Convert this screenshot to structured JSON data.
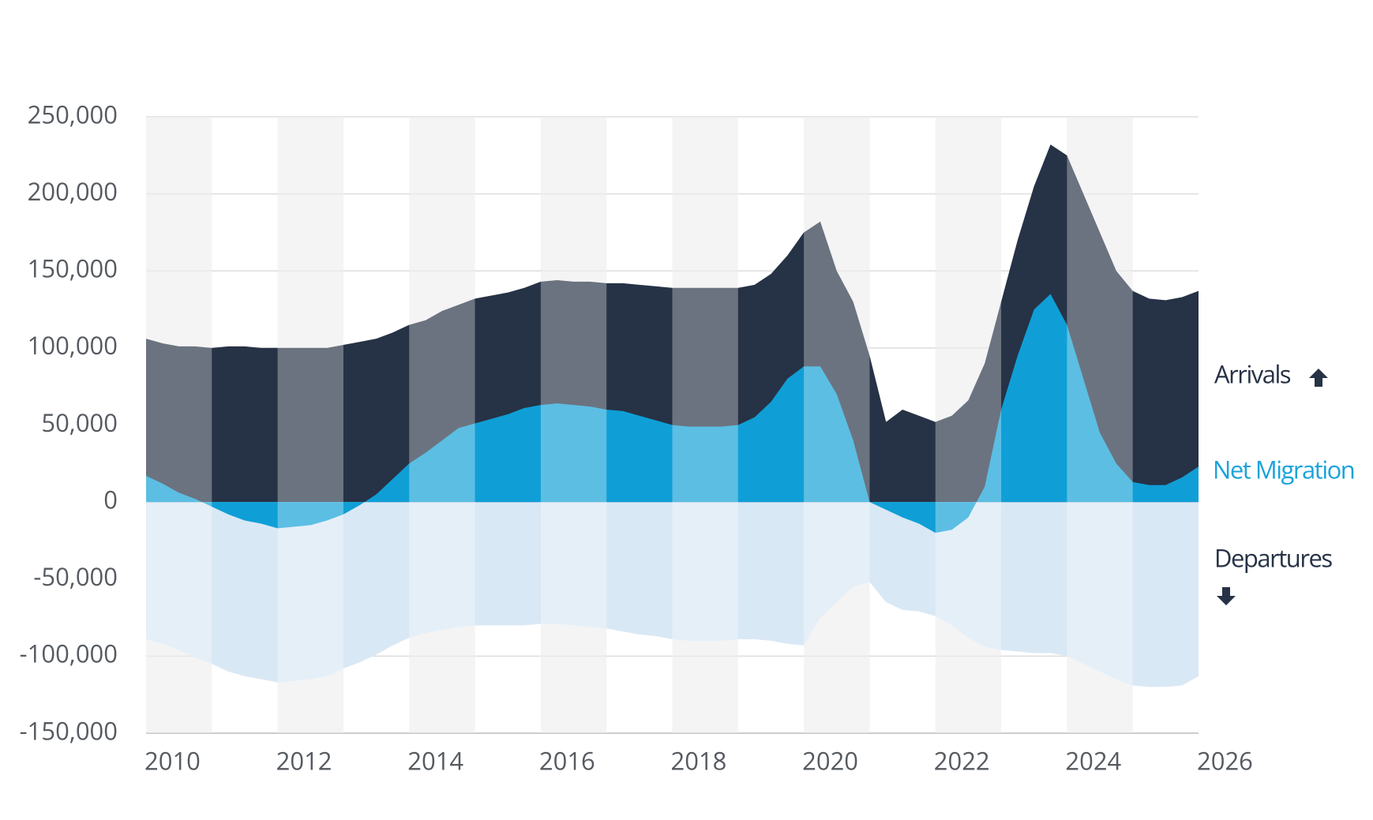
{
  "chart_data": {
    "type": "area",
    "x": [
      2010,
      2010.25,
      2010.5,
      2010.75,
      2011,
      2011.25,
      2011.5,
      2011.75,
      2012,
      2012.25,
      2012.5,
      2012.75,
      2013,
      2013.25,
      2013.5,
      2013.75,
      2014,
      2014.25,
      2014.5,
      2014.75,
      2015,
      2015.25,
      2015.5,
      2015.75,
      2016,
      2016.25,
      2016.5,
      2016.75,
      2017,
      2017.25,
      2017.5,
      2017.75,
      2018,
      2018.25,
      2018.5,
      2018.75,
      2019,
      2019.25,
      2019.5,
      2019.75,
      2020,
      2020.25,
      2020.5,
      2020.75,
      2021,
      2021.25,
      2021.5,
      2021.75,
      2022,
      2022.25,
      2022.5,
      2022.75,
      2023,
      2023.25,
      2023.5,
      2023.75,
      2024,
      2024.25,
      2024.5,
      2024.75,
      2025,
      2025.25,
      2025.5,
      2025.75,
      2026
    ],
    "series": [
      {
        "name": "Arrivals",
        "color": "#263245",
        "values": [
          106000,
          103000,
          101000,
          101000,
          100000,
          101000,
          101000,
          100000,
          100000,
          100000,
          100000,
          100000,
          102000,
          104000,
          106000,
          110000,
          115000,
          118000,
          124000,
          128000,
          132000,
          134000,
          136000,
          139000,
          143000,
          144000,
          143000,
          143000,
          142000,
          142000,
          141000,
          140000,
          139000,
          139000,
          139000,
          139000,
          139000,
          141000,
          148000,
          160000,
          175000,
          182000,
          150000,
          130000,
          95000,
          52000,
          60000,
          56000,
          52000,
          56000,
          66000,
          90000,
          130000,
          170000,
          205000,
          232000,
          225000,
          200000,
          175000,
          150000,
          137000,
          132000,
          131000,
          133000,
          137000
        ]
      },
      {
        "name": "Net Migration",
        "color": "#0f9fd6",
        "values": [
          17000,
          12000,
          6000,
          2000,
          -3000,
          -8000,
          -12000,
          -14000,
          -17000,
          -16000,
          -15000,
          -12000,
          -8000,
          -2000,
          5000,
          15000,
          25000,
          32000,
          40000,
          48000,
          51000,
          54000,
          57000,
          61000,
          63000,
          64000,
          63000,
          62000,
          60000,
          59000,
          56000,
          53000,
          50000,
          49000,
          49000,
          49000,
          50000,
          55000,
          65000,
          80000,
          88000,
          88000,
          70000,
          40000,
          0,
          -5000,
          -10000,
          -14000,
          -20000,
          -18000,
          -10000,
          10000,
          60000,
          95000,
          125000,
          135000,
          115000,
          80000,
          45000,
          25000,
          13000,
          11000,
          11000,
          16000,
          23000
        ]
      },
      {
        "name": "Departures",
        "color": "#d9e8f5",
        "values": [
          -89000,
          -92000,
          -96000,
          -101000,
          -105000,
          -110000,
          -113000,
          -115000,
          -117000,
          -116000,
          -115000,
          -113000,
          -108000,
          -104000,
          -99000,
          -93000,
          -88000,
          -85000,
          -83000,
          -81000,
          -80000,
          -80000,
          -80000,
          -80000,
          -79000,
          -79000,
          -80000,
          -81000,
          -82000,
          -84000,
          -86000,
          -87000,
          -89000,
          -90000,
          -90000,
          -90000,
          -89000,
          -89000,
          -90000,
          -92000,
          -93000,
          -75000,
          -65000,
          -55000,
          -52000,
          -65000,
          -70000,
          -71000,
          -74000,
          -80000,
          -88000,
          -94000,
          -96000,
          -97000,
          -98000,
          -98000,
          -100000,
          -105000,
          -110000,
          -115000,
          -119000,
          -120000,
          -120000,
          -119000,
          -113000
        ]
      }
    ],
    "xlim": [
      2010,
      2026
    ],
    "xticks": [
      2010,
      2012,
      2014,
      2016,
      2018,
      2020,
      2022,
      2024,
      2026
    ],
    "ylim": [
      -150000,
      250000
    ],
    "yticks": [
      {
        "value": 250000,
        "label": "250,000"
      },
      {
        "value": 200000,
        "label": "200,000"
      },
      {
        "value": 150000,
        "label": "150,000"
      },
      {
        "value": 100000,
        "label": "100,000"
      },
      {
        "value": 50000,
        "label": "50,000"
      },
      0,
      {
        "value": -50000,
        "label": "-50,000"
      },
      {
        "value": -100000,
        "label": "-100,000"
      },
      {
        "value": -150000,
        "label": "-150,000"
      }
    ],
    "grid": true
  }
}
